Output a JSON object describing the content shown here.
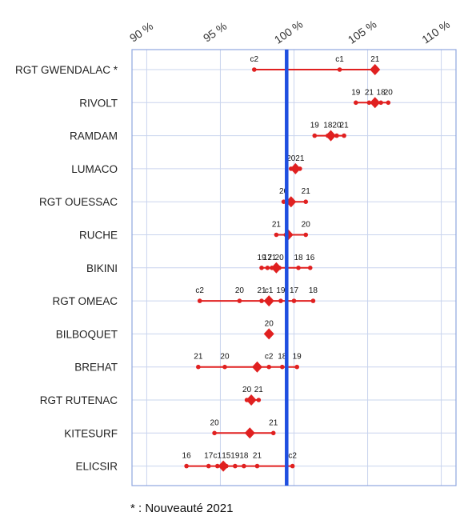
{
  "chart_data": {
    "type": "scatter",
    "xlim": [
      89,
      111
    ],
    "ticks": [
      90,
      95,
      100,
      105,
      110
    ],
    "tick_suffix": " %",
    "reference_x": 99.5,
    "grid": true,
    "colors": {
      "marker": "#e02020",
      "reference": "#1f4fe0",
      "grid": "#c9d4ee",
      "frame": "#8fa6e0"
    },
    "categories": [
      {
        "name": "RGT GWENDALAC  *",
        "main": 105.5,
        "points": [
          {
            "x": 97.3,
            "label": "c2"
          },
          {
            "x": 103.1,
            "label": "c1"
          },
          {
            "x": 105.5,
            "label": "21"
          }
        ]
      },
      {
        "name": "RIVOLT",
        "main": 105.5,
        "points": [
          {
            "x": 104.2,
            "label": "19"
          },
          {
            "x": 105.1,
            "label": "21"
          },
          {
            "x": 105.9,
            "label": "18"
          },
          {
            "x": 106.4,
            "label": "20"
          }
        ]
      },
      {
        "name": "RAMDAM",
        "main": 102.5,
        "points": [
          {
            "x": 101.4,
            "label": "19"
          },
          {
            "x": 102.3,
            "label": "18"
          },
          {
            "x": 102.9,
            "label": "20"
          },
          {
            "x": 103.4,
            "label": "21"
          }
        ]
      },
      {
        "name": "LUMACO",
        "main": 100.1,
        "points": [
          {
            "x": 99.8,
            "label": "20"
          },
          {
            "x": 100.4,
            "label": "21"
          }
        ]
      },
      {
        "name": "RGT OUESSAC",
        "main": 99.8,
        "points": [
          {
            "x": 99.3,
            "label": "20"
          },
          {
            "x": 100.8,
            "label": "21"
          }
        ]
      },
      {
        "name": "RUCHE",
        "main": 99.6,
        "points": [
          {
            "x": 98.8,
            "label": "21"
          },
          {
            "x": 100.8,
            "label": "20"
          }
        ]
      },
      {
        "name": "BIKINI",
        "main": 98.8,
        "points": [
          {
            "x": 97.8,
            "label": "19"
          },
          {
            "x": 98.2,
            "label": "17"
          },
          {
            "x": 98.5,
            "label": "21"
          },
          {
            "x": 99.0,
            "label": "20"
          },
          {
            "x": 100.3,
            "label": "18"
          },
          {
            "x": 101.1,
            "label": "16"
          }
        ]
      },
      {
        "name": "RGT OMEAC",
        "main": 98.3,
        "points": [
          {
            "x": 93.6,
            "label": "c2"
          },
          {
            "x": 96.3,
            "label": "20"
          },
          {
            "x": 97.8,
            "label": "21"
          },
          {
            "x": 98.3,
            "label": "c1"
          },
          {
            "x": 99.1,
            "label": "19"
          },
          {
            "x": 100.0,
            "label": "17"
          },
          {
            "x": 101.3,
            "label": "18"
          }
        ]
      },
      {
        "name": "BILBOQUET",
        "main": 98.3,
        "points": [
          {
            "x": 98.3,
            "label": "20"
          }
        ]
      },
      {
        "name": "BREHAT",
        "main": 97.5,
        "points": [
          {
            "x": 93.5,
            "label": "21"
          },
          {
            "x": 95.3,
            "label": "20"
          },
          {
            "x": 98.3,
            "label": "c2"
          },
          {
            "x": 99.2,
            "label": "18"
          },
          {
            "x": 100.2,
            "label": "19"
          }
        ]
      },
      {
        "name": "RGT RUTENAC",
        "main": 97.1,
        "points": [
          {
            "x": 96.8,
            "label": "20"
          },
          {
            "x": 97.6,
            "label": "21"
          }
        ]
      },
      {
        "name": "KITESURF",
        "main": 97.0,
        "points": [
          {
            "x": 94.6,
            "label": "20"
          },
          {
            "x": 98.6,
            "label": "21"
          }
        ]
      },
      {
        "name": "ELICSIR",
        "main": 95.2,
        "points": [
          {
            "x": 92.7,
            "label": "16"
          },
          {
            "x": 94.2,
            "label": "17"
          },
          {
            "x": 94.8,
            "label": "c1"
          },
          {
            "x": 95.4,
            "label": "15"
          },
          {
            "x": 96.0,
            "label": "19"
          },
          {
            "x": 96.6,
            "label": "18"
          },
          {
            "x": 97.5,
            "label": "21"
          },
          {
            "x": 99.9,
            "label": "c2"
          }
        ]
      }
    ]
  },
  "footnote": "* : Nouveauté 2021"
}
